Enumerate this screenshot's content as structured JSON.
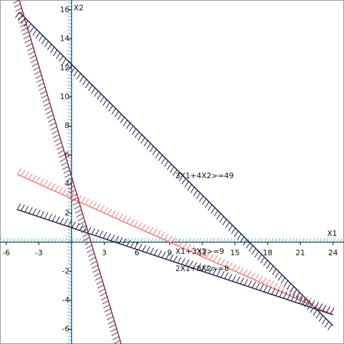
{
  "chart_data": {
    "type": "line",
    "x_label": "X1",
    "y_label": "X2",
    "xlim": [
      -6.57,
      25.01
    ],
    "ylim": [
      -7.01,
      16.68
    ],
    "xticks": [
      -6,
      -3,
      3,
      6,
      9,
      12,
      15,
      18,
      21,
      24
    ],
    "yticks": [
      -6,
      -4,
      -2,
      2,
      4,
      6,
      8,
      10,
      12,
      14,
      16
    ],
    "grid": false,
    "axis_hatch_color": "#5bc8e8",
    "series": [
      {
        "name": "3X1+4X2>=49",
        "color": "#1c1c4c",
        "x": [
          -4.8,
          24
        ],
        "values": [
          15.85,
          -5.75
        ]
      },
      {
        "name": "X1+3X2>=9",
        "color": "#f07a7a",
        "x": [
          -5,
          24
        ],
        "values": [
          4.67,
          -5
        ]
      },
      {
        "name": "2X1+8X2>=8",
        "color": "#1c1c3c",
        "x": [
          -5,
          24
        ],
        "values": [
          2.25,
          -5
        ]
      },
      {
        "color": "#7a3050",
        "x": [
          -4.8,
          4.55
        ],
        "values": [
          16.68,
          -7
        ]
      }
    ]
  }
}
